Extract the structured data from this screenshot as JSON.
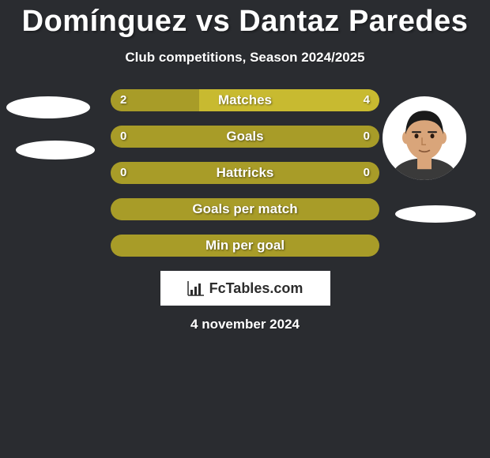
{
  "title": "Domínguez vs Dantaz Paredes",
  "subtitle": "Club competitions, Season 2024/2025",
  "date": "4 november 2024",
  "logo_text": "FcTables.com",
  "colors": {
    "bg": "#2a2c30",
    "bar_a": "#a89c28",
    "bar_b": "#c8ba30",
    "text": "#ffffff",
    "skin": "#d9a57a",
    "skin_shadow": "#b57f52",
    "hair": "#1a1a1a"
  },
  "bars": [
    {
      "label": "Matches",
      "left": "2",
      "right": "4",
      "left_pct": 33,
      "right_pct": 67,
      "show_vals": true,
      "two_tone": true
    },
    {
      "label": "Goals",
      "left": "0",
      "right": "0",
      "left_pct": 50,
      "right_pct": 50,
      "show_vals": true,
      "two_tone": false
    },
    {
      "label": "Hattricks",
      "left": "0",
      "right": "0",
      "left_pct": 50,
      "right_pct": 50,
      "show_vals": true,
      "two_tone": false
    },
    {
      "label": "Goals per match",
      "left": "",
      "right": "",
      "left_pct": 50,
      "right_pct": 50,
      "show_vals": false,
      "two_tone": false
    },
    {
      "label": "Min per goal",
      "left": "",
      "right": "",
      "left_pct": 50,
      "right_pct": 50,
      "show_vals": false,
      "two_tone": false
    }
  ]
}
